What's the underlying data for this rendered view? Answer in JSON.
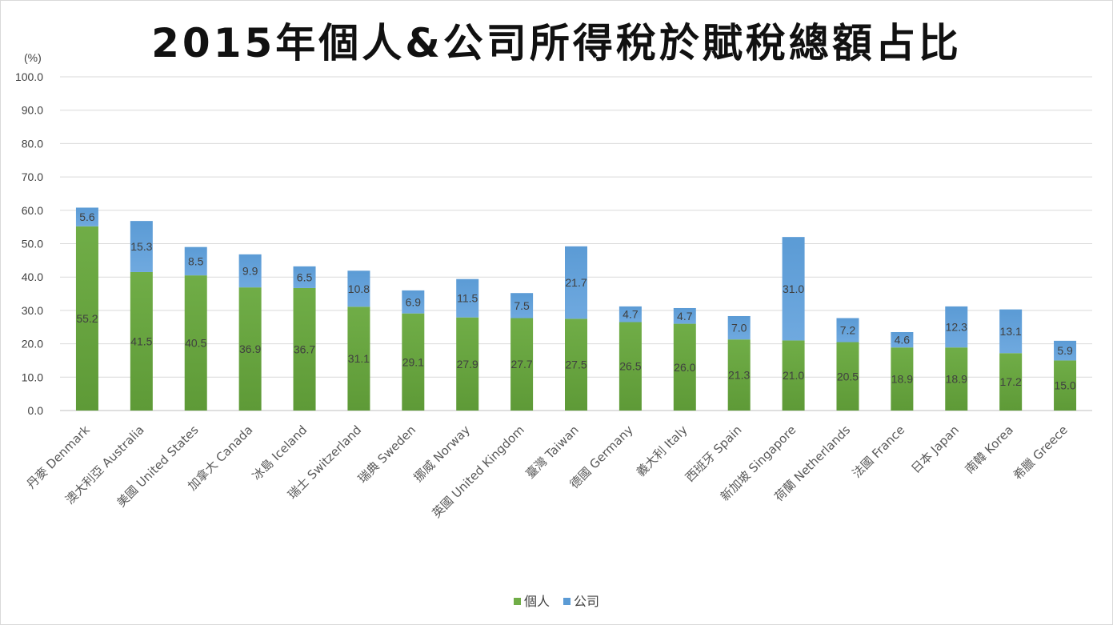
{
  "title": "2015年個人&公司所得稅於賦稅總額占比",
  "unit_label": "(%)",
  "colors": {
    "individual": "#70ad47",
    "corporate": "#5b9bd5"
  },
  "chart_data": {
    "type": "bar",
    "stacked": true,
    "categories": [
      "丹麥 Denmark",
      "澳大利亞 Australia",
      "美國 United States",
      "加拿大 Canada",
      "冰島 Iceland",
      "瑞士 Switzerland",
      "瑞典 Sweden",
      "挪威 Norway",
      "英國 United Kingdom",
      "臺灣 Taiwan",
      "德國 Germany",
      "義大利 Italy",
      "西班牙 Spain",
      "新加坡 Singapore",
      "荷蘭 Netherlands",
      "法國 France",
      "日本 Japan",
      "南韓 Korea",
      "希臘 Greece"
    ],
    "series": [
      {
        "name": "個人",
        "values": [
          55.2,
          41.5,
          40.5,
          36.9,
          36.7,
          31.1,
          29.1,
          27.9,
          27.7,
          27.5,
          26.5,
          26.0,
          21.3,
          21.0,
          20.5,
          18.9,
          18.9,
          17.2,
          15.0
        ]
      },
      {
        "name": "公司",
        "values": [
          5.6,
          15.3,
          8.5,
          9.9,
          6.5,
          10.8,
          6.9,
          11.5,
          7.5,
          21.7,
          4.7,
          4.7,
          7.0,
          31.0,
          7.2,
          4.6,
          12.3,
          13.1,
          5.9
        ]
      }
    ],
    "ylim": [
      0,
      100
    ],
    "yticks": [
      "0.0",
      "10.0",
      "20.0",
      "30.0",
      "40.0",
      "50.0",
      "60.0",
      "70.0",
      "80.0",
      "90.0",
      "100.0"
    ],
    "grid": true,
    "legend_position": "bottom"
  }
}
